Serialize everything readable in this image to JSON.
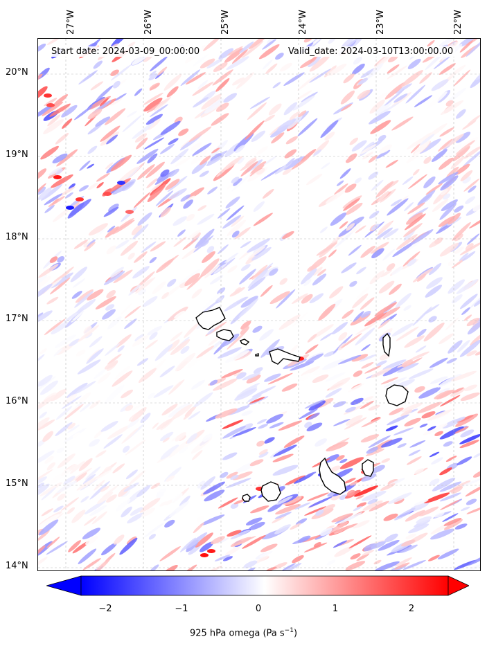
{
  "header": {
    "start_date": "Start date: 2024-03-09_00:00:00",
    "valid_date": "Valid_date: 2024-03-10T13:00:00.00"
  },
  "axes": {
    "lon_labels": [
      "27°W",
      "26°W",
      "25°W",
      "24°W",
      "23°W",
      "22°W"
    ],
    "lat_labels": [
      "20°N",
      "19°N",
      "18°N",
      "17°N",
      "16°N",
      "15°N",
      "14°N"
    ]
  },
  "colorbar": {
    "ticks": [
      "−2",
      "−1",
      "0",
      "1",
      "2"
    ],
    "label": "925 hPa omega (Pa s",
    "label_sup": "−1",
    "label_end": ")",
    "colors": {
      "min": "#0000ff",
      "mid": "#ffffff",
      "max": "#ff0000"
    },
    "range": [
      -2.7,
      2.7
    ],
    "extend": "both"
  },
  "map": {
    "field": "925 hPa omega",
    "colormap": "bwr",
    "islands": [
      "Santo Antão",
      "São Vicente",
      "Santa Luzia",
      "São Nicolau",
      "Sal",
      "Boa Vista",
      "Maio",
      "Santiago",
      "Fogo",
      "Brava"
    ],
    "gridlines": true
  }
}
